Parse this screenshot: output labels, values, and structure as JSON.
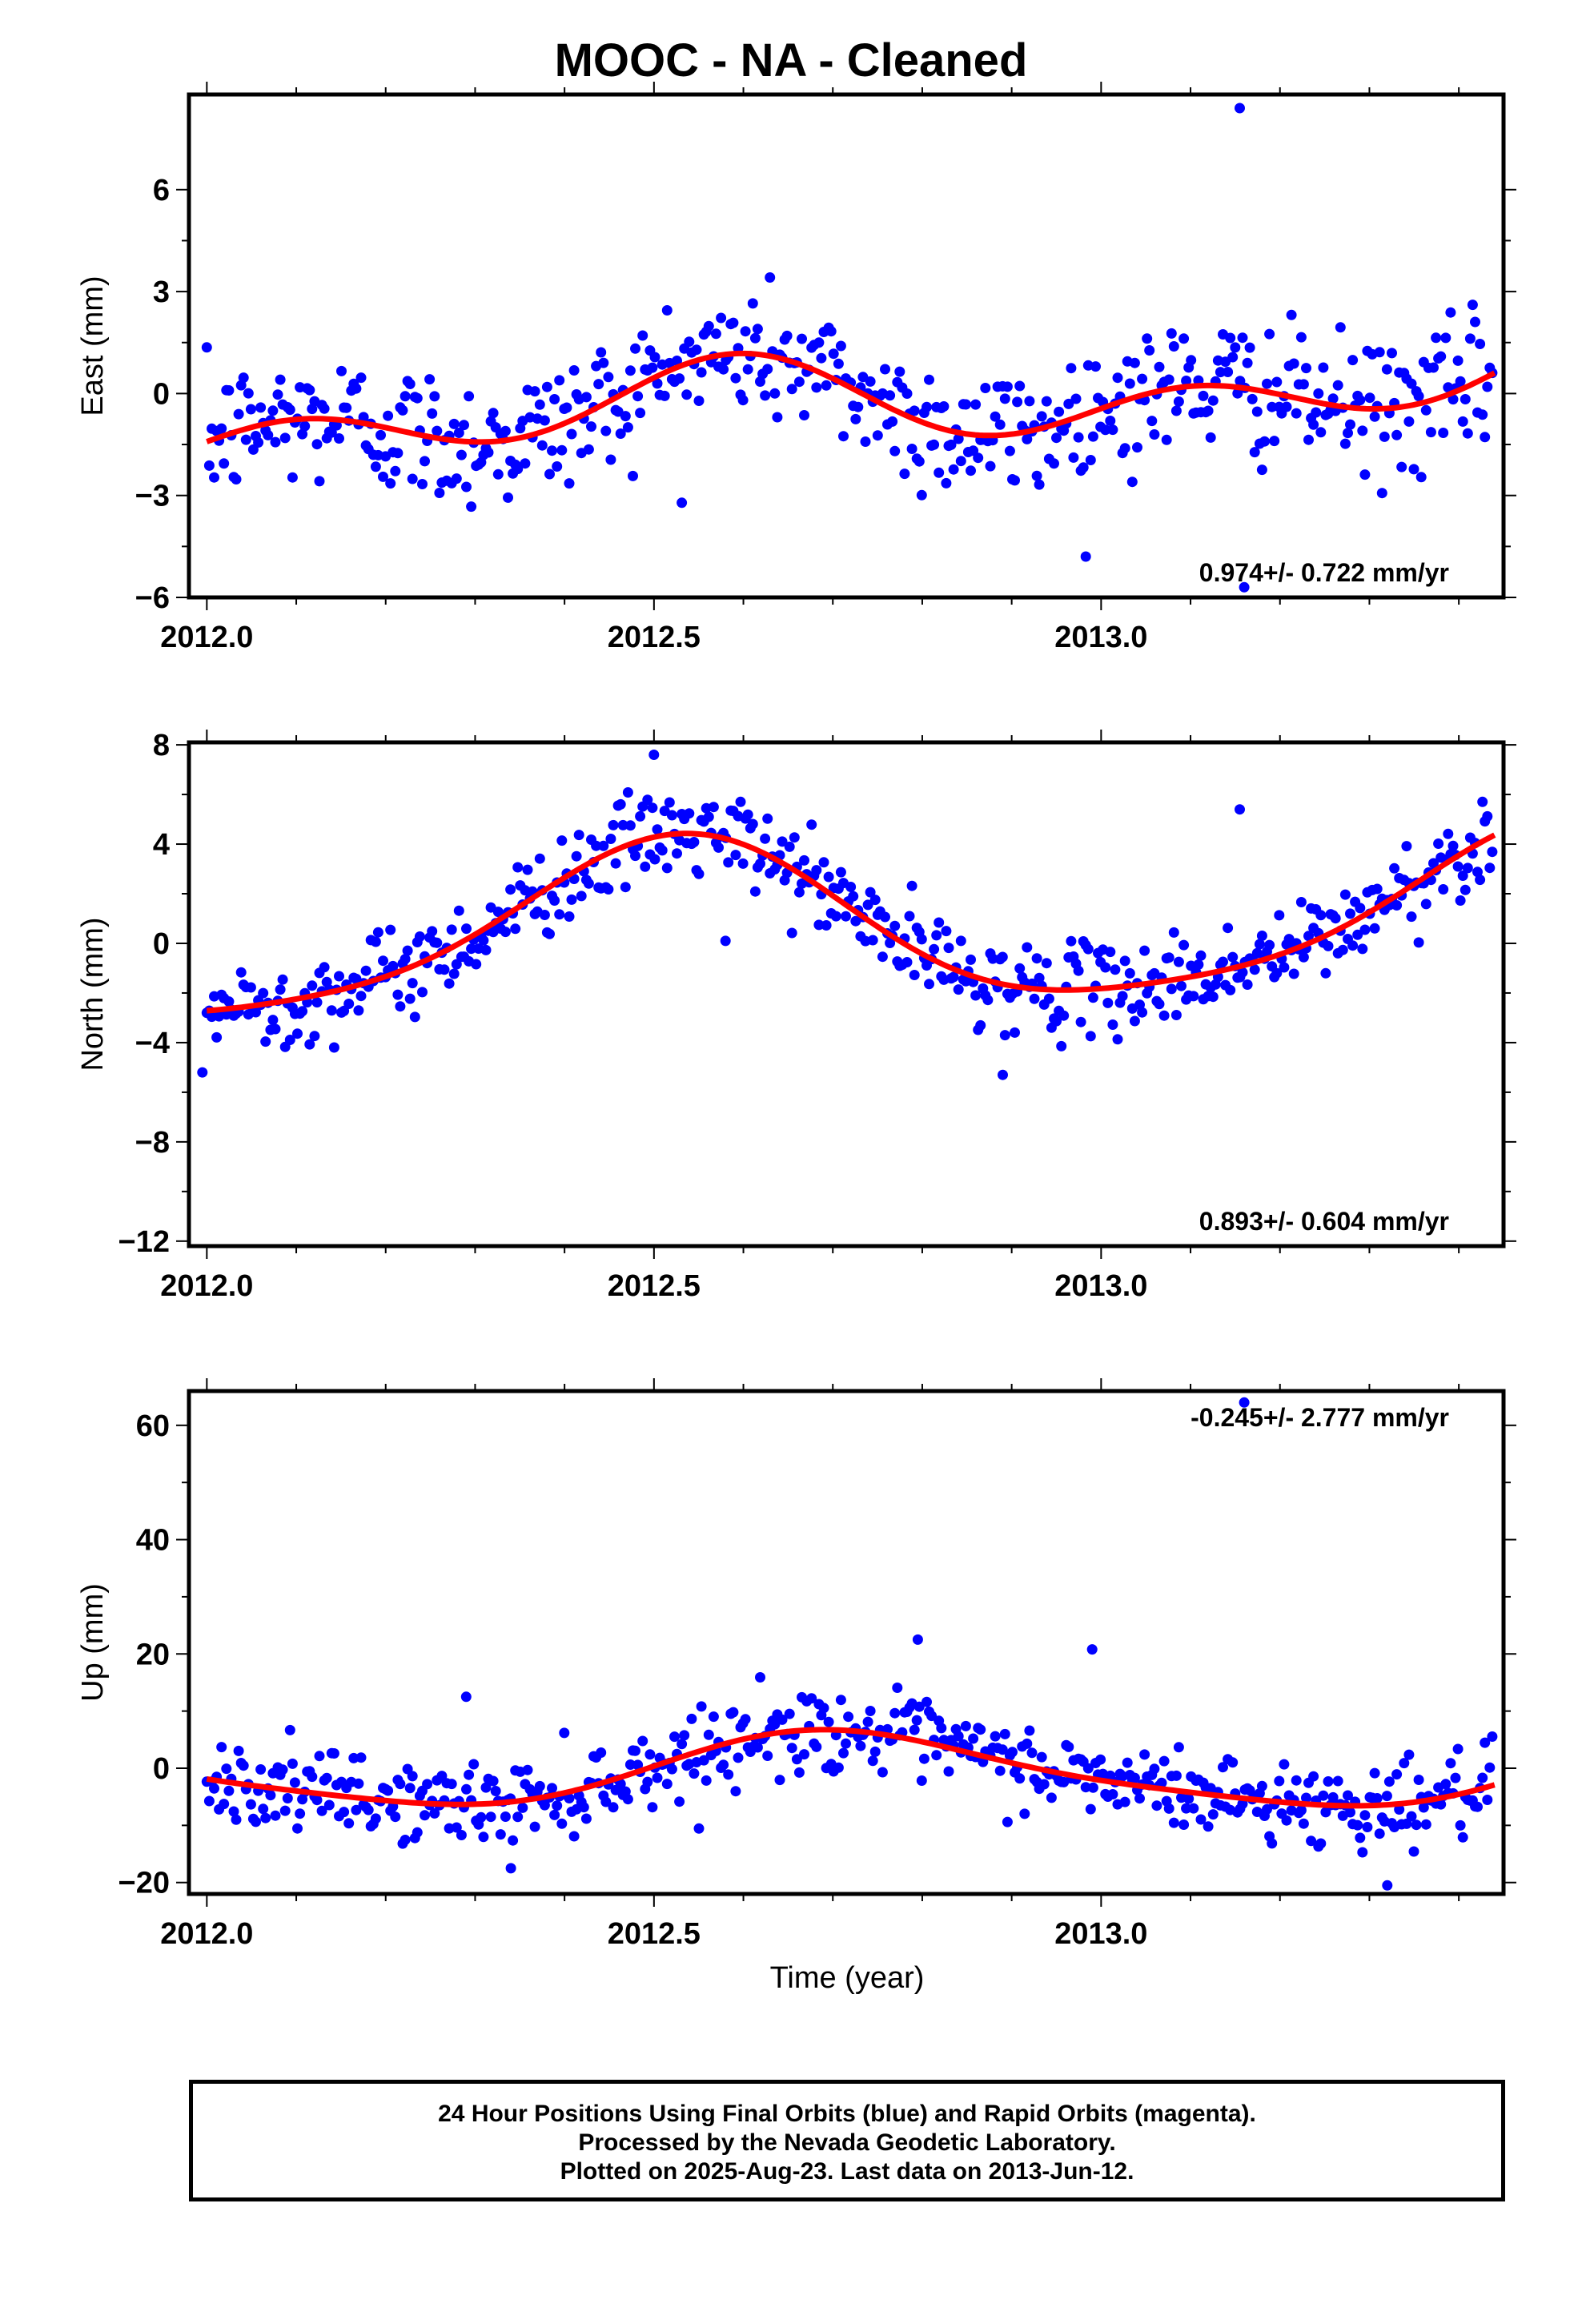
{
  "title": "MOOC  - NA - Cleaned",
  "footer": {
    "line1": "24 Hour Positions Using Final Orbits (blue) and Rapid Orbits (magenta).",
    "line2": "Processed by the Nevada Geodetic Laboratory.",
    "line3": "Plotted on 2025-Aug-23. Last data on 2013-Jun-12."
  },
  "colors": {
    "points": "#0000ff",
    "fit": "#ff0000",
    "frame": "#000000"
  },
  "xlabel": "Time (year)",
  "chart_data": [
    {
      "type": "scatter",
      "ylabel": "East (mm)",
      "xlim": [
        2011.98,
        2013.45
      ],
      "ylim": [
        -6,
        8.8
      ],
      "yticks": [
        -6,
        -3,
        0,
        3,
        6
      ],
      "ytick_labels": [
        "−6",
        "−3",
        "0",
        "3",
        "6"
      ],
      "xticks": [
        2012.0,
        2012.5,
        2013.0
      ],
      "xtick_labels": [
        "2012.0",
        "2012.5",
        "2013.0"
      ],
      "rate": "0.974+/- 0.722 mm/yr",
      "rate_position": "bottom-right",
      "fit": {
        "offset": -0.3,
        "trend_per_yr": 0.974,
        "annual_amp": 0.75,
        "annual_peak": 2012.56,
        "semiannual_amp": 0.85,
        "semiannual_peak": 2012.1
      },
      "noise": 1.0,
      "outliers": [
        {
          "x": 2013.155,
          "y": 8.4
        },
        {
          "x": 2013.16,
          "y": -5.7
        }
      ]
    },
    {
      "type": "scatter",
      "ylabel": "North (mm)",
      "xlim": [
        2011.98,
        2013.45
      ],
      "ylim": [
        -12.2,
        8.1
      ],
      "yticks": [
        -12,
        -8,
        -4,
        0,
        4,
        8
      ],
      "ytick_labels": [
        "−12",
        "−8",
        "−4",
        "0",
        "4",
        "8"
      ],
      "xticks": [
        2012.0,
        2012.5,
        2013.0
      ],
      "xtick_labels": [
        "2012.0",
        "2012.5",
        "2013.0"
      ],
      "rate": "0.893+/- 0.604 mm/yr",
      "rate_position": "bottom-right",
      "fit": {
        "offset": 0.7,
        "trend_per_yr": 0.893,
        "annual_amp": 3.3,
        "annual_peak": 2012.52,
        "semiannual_amp": 0.6,
        "semiannual_peak": 2012.55
      },
      "noise": 0.9,
      "outliers": [
        {
          "x": 2012.5,
          "y": 7.6
        },
        {
          "x": 2012.58,
          "y": 0.1
        },
        {
          "x": 2012.89,
          "y": -5.3
        },
        {
          "x": 2013.155,
          "y": 5.4
        },
        {
          "x": 2011.995,
          "y": -5.2
        }
      ]
    },
    {
      "type": "scatter",
      "ylabel": "Up (mm)",
      "xlim": [
        2011.98,
        2013.45
      ],
      "ylim": [
        -22,
        66
      ],
      "yticks": [
        -20,
        0,
        20,
        40,
        60
      ],
      "ytick_labels": [
        "−20",
        "0",
        "20",
        "40",
        "60"
      ],
      "xticks": [
        2012.0,
        2012.5,
        2013.0
      ],
      "xtick_labels": [
        "2012.0",
        "2012.5",
        "2013.0"
      ],
      "rate": "-0.245+/- 2.777 mm/yr",
      "rate_position": "top-right",
      "fit": {
        "offset": -0.5,
        "trend_per_yr": -0.245,
        "annual_amp": 6.3,
        "annual_peak": 2012.72,
        "semiannual_amp": 1.2,
        "semiannual_peak": 2012.65
      },
      "noise": 3.5,
      "outliers": [
        {
          "x": 2012.795,
          "y": 22.5
        },
        {
          "x": 2012.99,
          "y": 20.8
        },
        {
          "x": 2013.16,
          "y": 64
        },
        {
          "x": 2012.29,
          "y": 12.5
        },
        {
          "x": 2013.32,
          "y": -20.5
        },
        {
          "x": 2012.34,
          "y": -17.5
        }
      ]
    }
  ]
}
